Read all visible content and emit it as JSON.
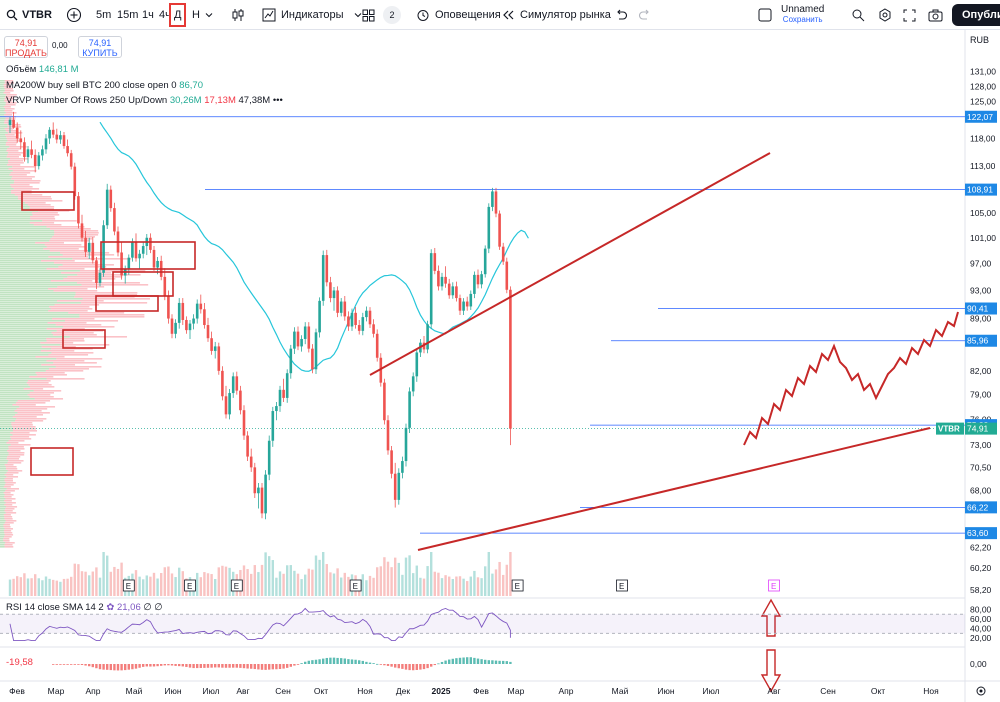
{
  "toolbar": {
    "symbol": "VTBR",
    "timeframes": [
      "5m",
      "15m",
      "1ч",
      "4ч"
    ],
    "active_timeframe": "Д",
    "hidden_timeframe": "Н",
    "indicators_label": "Индикаторы",
    "templates_count": "2",
    "alerts_label": "Оповещения",
    "replay_label": "Симулятор рынка",
    "layout_name": "Unnamed",
    "layout_status": "Сохранить",
    "publish_label": "Опублико"
  },
  "trade": {
    "sell_price": "74,91",
    "sell_label": "ПРОДАТЬ",
    "spread": "0,00",
    "buy_price": "74,91",
    "buy_label": "КУПИТЬ"
  },
  "legend": {
    "volume_label": "Объём",
    "volume_value": "146,81 M",
    "ma_label": "MA200W buy sell BTC 200 close open 0",
    "ma_value": "86,70",
    "vrvp_label": "VRVP Number Of Rows 250 Up/Down",
    "vrvp_up": "30,26M",
    "vrvp_down": "17,13M",
    "vrvp_total": "47,38M",
    "rsi_label": "RSI 14 close SMA 14 2",
    "rsi_value": "21,06",
    "rsi_extra": "∅ ∅",
    "macd_value": "-19,58"
  },
  "chart_data": {
    "type": "candlestick",
    "symbol": "VTBR",
    "currency": "RUB",
    "price_axis": {
      "ticks": [
        "131,00",
        "128,00",
        "125,00",
        "122,00",
        "118,00",
        "113,00",
        "109,00",
        "105,00",
        "101,00",
        "97,00",
        "93,00",
        "89,00",
        "85,96",
        "82,00",
        "79,00",
        "76,00",
        "73,00",
        "70,50",
        "68,00",
        "66,00",
        "63,60",
        "62,20",
        "60,20",
        "58,20"
      ],
      "range": [
        58,
        133
      ],
      "scale": "log"
    },
    "time_axis": [
      "Фев",
      "Мар",
      "Апр",
      "Май",
      "Июн",
      "Июл",
      "Авг",
      "Сен",
      "Окт",
      "Ноя",
      "Дек",
      "2025",
      "Фев",
      "Мар",
      "Апр",
      "Май",
      "Июн",
      "Июл",
      "Авг",
      "Сен",
      "Окт",
      "Ноя"
    ],
    "price_labels": [
      {
        "value": "122,07"
      },
      {
        "value": "108,91"
      },
      {
        "value": "90,41"
      },
      {
        "value": "85,96"
      },
      {
        "value": "75,32"
      },
      {
        "value": "74,91",
        "tag": "VTBR"
      },
      {
        "value": "66,22"
      },
      {
        "value": "63,60"
      }
    ],
    "candles": [
      [
        120.5,
        122.0,
        119.0,
        121.5
      ],
      [
        121.5,
        123.0,
        119.8,
        120.0
      ],
      [
        120.0,
        121.0,
        117.2,
        118.0
      ],
      [
        118.0,
        119.5,
        116.0,
        117.3
      ],
      [
        117.3,
        118.2,
        113.8,
        114.6
      ],
      [
        114.6,
        116.6,
        113.5,
        116.0
      ],
      [
        116.0,
        117.6,
        114.4,
        115.0
      ],
      [
        115.0,
        116.0,
        111.9,
        113.0
      ],
      [
        113.0,
        115.5,
        112.4,
        114.9
      ],
      [
        114.9,
        116.7,
        114.0,
        116.0
      ],
      [
        116.0,
        118.8,
        115.2,
        118.0
      ],
      [
        118.0,
        120.1,
        117.0,
        119.6
      ],
      [
        119.6,
        121.0,
        118.1,
        118.7
      ],
      [
        118.7,
        119.8,
        117.1,
        117.8
      ],
      [
        117.8,
        119.4,
        117.0,
        118.6
      ],
      [
        118.6,
        119.2,
        116.1,
        116.6
      ],
      [
        116.6,
        117.8,
        114.7,
        115.3
      ],
      [
        115.3,
        115.9,
        112.4,
        112.9
      ],
      [
        112.9,
        113.6,
        107.2,
        107.8
      ],
      [
        107.8,
        108.5,
        102.5,
        103.3
      ],
      [
        103.3,
        104.7,
        100.4,
        101.0
      ],
      [
        101.0,
        102.1,
        98.0,
        98.8
      ],
      [
        98.8,
        101.0,
        97.7,
        100.2
      ],
      [
        100.2,
        101.1,
        97.0,
        97.5
      ],
      [
        97.5,
        98.0,
        93.2,
        94.1
      ],
      [
        94.1,
        96.3,
        93.6,
        95.6
      ],
      [
        95.6,
        103.8,
        95.0,
        103.0
      ],
      [
        103.0,
        109.9,
        102.4,
        108.9
      ],
      [
        108.9,
        109.6,
        105.2,
        105.8
      ],
      [
        105.8,
        106.7,
        101.4,
        102.0
      ],
      [
        102.0,
        102.8,
        98.1,
        98.7
      ],
      [
        98.7,
        100.4,
        94.6,
        95.2
      ],
      [
        95.2,
        96.7,
        94.0,
        96.2
      ],
      [
        96.2,
        98.4,
        95.3,
        97.9
      ],
      [
        97.9,
        100.9,
        97.3,
        100.4
      ],
      [
        100.4,
        101.7,
        97.3,
        97.8
      ],
      [
        97.8,
        99.1,
        96.1,
        98.5
      ],
      [
        98.5,
        100.3,
        97.8,
        99.7
      ],
      [
        99.7,
        101.6,
        98.3,
        101.0
      ],
      [
        101.0,
        101.7,
        98.6,
        99.1
      ],
      [
        99.1,
        99.7,
        95.9,
        96.4
      ],
      [
        96.4,
        98.0,
        95.4,
        97.4
      ],
      [
        97.4,
        98.2,
        94.5,
        95.0
      ],
      [
        95.0,
        96.3,
        91.6,
        92.2
      ],
      [
        92.2,
        93.0,
        88.3,
        89.0
      ],
      [
        89.0,
        89.6,
        86.3,
        86.9
      ],
      [
        86.9,
        88.9,
        86.3,
        88.4
      ],
      [
        88.4,
        91.9,
        87.6,
        91.2
      ],
      [
        91.2,
        91.9,
        88.1,
        88.8
      ],
      [
        88.8,
        89.3,
        86.9,
        87.4
      ],
      [
        87.4,
        88.8,
        86.2,
        88.3
      ],
      [
        88.3,
        89.6,
        87.5,
        89.0
      ],
      [
        89.0,
        91.7,
        88.3,
        91.1
      ],
      [
        91.1,
        92.4,
        89.7,
        90.3
      ],
      [
        90.3,
        91.2,
        87.6,
        88.1
      ],
      [
        88.1,
        89.1,
        85.8,
        86.3
      ],
      [
        86.3,
        87.2,
        84.1,
        84.6
      ],
      [
        84.6,
        85.8,
        83.6,
        85.2
      ],
      [
        85.2,
        85.7,
        81.5,
        82.0
      ],
      [
        82.0,
        82.6,
        78.3,
        78.8
      ],
      [
        78.8,
        80.1,
        76.1,
        76.6
      ],
      [
        76.6,
        79.7,
        76.0,
        79.2
      ],
      [
        79.2,
        81.8,
        78.6,
        81.3
      ],
      [
        81.3,
        81.9,
        79.0,
        79.5
      ],
      [
        79.5,
        80.1,
        76.6,
        77.1
      ],
      [
        77.1,
        77.7,
        73.6,
        74.1
      ],
      [
        74.1,
        74.6,
        71.2,
        71.7
      ],
      [
        71.7,
        72.6,
        70.0,
        70.5
      ],
      [
        70.5,
        71.0,
        67.2,
        67.7
      ],
      [
        67.7,
        68.8,
        66.1,
        68.3
      ],
      [
        68.3,
        68.8,
        65.1,
        65.6
      ],
      [
        65.6,
        70.2,
        65.0,
        69.7
      ],
      [
        69.7,
        74.1,
        69.1,
        73.5
      ],
      [
        73.5,
        77.5,
        72.8,
        77.0
      ],
      [
        77.0,
        78.1,
        75.9,
        77.6
      ],
      [
        77.6,
        80.1,
        76.9,
        79.6
      ],
      [
        79.6,
        81.0,
        78.1,
        78.6
      ],
      [
        78.6,
        82.2,
        78.0,
        81.7
      ],
      [
        81.7,
        85.4,
        81.0,
        84.9
      ],
      [
        84.9,
        87.8,
        84.2,
        87.2
      ],
      [
        87.2,
        87.9,
        84.7,
        85.2
      ],
      [
        85.2,
        86.7,
        84.5,
        86.2
      ],
      [
        86.2,
        88.5,
        85.5,
        87.9
      ],
      [
        87.9,
        88.5,
        84.4,
        84.9
      ],
      [
        84.9,
        85.5,
        81.7,
        82.2
      ],
      [
        82.2,
        87.6,
        81.6,
        87.1
      ],
      [
        87.1,
        92.0,
        86.4,
        91.5
      ],
      [
        91.5,
        99.0,
        90.8,
        98.3
      ],
      [
        98.3,
        99.1,
        93.6,
        94.2
      ],
      [
        94.2,
        95.0,
        91.3,
        91.9
      ],
      [
        91.9,
        93.5,
        90.1,
        93.0
      ],
      [
        93.0,
        93.6,
        89.2,
        89.8
      ],
      [
        89.8,
        91.9,
        89.3,
        91.4
      ],
      [
        91.4,
        92.2,
        88.7,
        89.3
      ],
      [
        89.3,
        90.0,
        87.3,
        87.9
      ],
      [
        87.9,
        90.4,
        87.3,
        89.8
      ],
      [
        89.8,
        90.6,
        87.6,
        88.1
      ],
      [
        88.1,
        88.8,
        86.8,
        87.3
      ],
      [
        87.3,
        89.8,
        86.7,
        89.2
      ],
      [
        89.2,
        90.7,
        88.6,
        90.1
      ],
      [
        90.1,
        90.6,
        87.7,
        88.2
      ],
      [
        88.2,
        88.9,
        86.4,
        86.9
      ],
      [
        86.9,
        87.5,
        83.2,
        83.7
      ],
      [
        83.7,
        84.3,
        80.0,
        80.5
      ],
      [
        80.5,
        81.0,
        75.4,
        75.9
      ],
      [
        75.9,
        76.5,
        71.9,
        72.4
      ],
      [
        72.4,
        72.9,
        69.3,
        69.8
      ],
      [
        69.8,
        71.0,
        66.2,
        67.0
      ],
      [
        67.0,
        70.4,
        66.5,
        69.9
      ],
      [
        69.9,
        71.7,
        69.3,
        71.2
      ],
      [
        71.2,
        75.5,
        70.6,
        75.0
      ],
      [
        75.0,
        79.9,
        74.4,
        79.4
      ],
      [
        79.4,
        81.8,
        78.8,
        81.3
      ],
      [
        81.3,
        84.9,
        80.6,
        84.4
      ],
      [
        84.4,
        86.2,
        83.8,
        85.7
      ],
      [
        85.7,
        86.6,
        84.3,
        84.8
      ],
      [
        84.8,
        88.7,
        84.3,
        88.2
      ],
      [
        88.2,
        99.2,
        87.6,
        98.6
      ],
      [
        98.6,
        99.4,
        95.4,
        95.9
      ],
      [
        95.9,
        96.7,
        93.0,
        93.6
      ],
      [
        93.6,
        95.6,
        93.0,
        95.0
      ],
      [
        95.0,
        96.6,
        93.4,
        94.0
      ],
      [
        94.0,
        94.7,
        91.8,
        92.3
      ],
      [
        92.3,
        94.2,
        91.8,
        93.6
      ],
      [
        93.6,
        94.3,
        91.4,
        91.9
      ],
      [
        91.9,
        92.4,
        89.5,
        90.1
      ],
      [
        90.1,
        91.9,
        89.5,
        91.4
      ],
      [
        91.4,
        92.1,
        90.1,
        90.7
      ],
      [
        90.7,
        93.0,
        90.2,
        92.5
      ],
      [
        92.5,
        95.8,
        91.9,
        95.3
      ],
      [
        95.3,
        96.1,
        93.3,
        93.9
      ],
      [
        93.9,
        95.9,
        93.3,
        95.4
      ],
      [
        95.4,
        99.8,
        94.9,
        99.3
      ],
      [
        99.3,
        106.6,
        98.6,
        106.0
      ],
      [
        106.0,
        109.2,
        105.3,
        108.6
      ],
      [
        108.6,
        109.2,
        104.3,
        104.9
      ],
      [
        104.9,
        105.4,
        99.1,
        99.6
      ],
      [
        99.6,
        100.2,
        96.8,
        97.3
      ],
      [
        97.3,
        97.9,
        92.6,
        93.1
      ],
      [
        93.1,
        93.6,
        73.0,
        74.9
      ]
    ],
    "volume_markers": [
      "E",
      "E",
      "E",
      "E",
      "E",
      "E",
      "E"
    ],
    "rsi": {
      "levels": [
        70,
        30
      ],
      "axis_ticks": [
        "80,00",
        "60,00",
        "40,00",
        "20,00"
      ],
      "last": 21.06
    },
    "macd": {
      "axis_ticks": [
        "0,00"
      ],
      "last": -19.58
    }
  }
}
